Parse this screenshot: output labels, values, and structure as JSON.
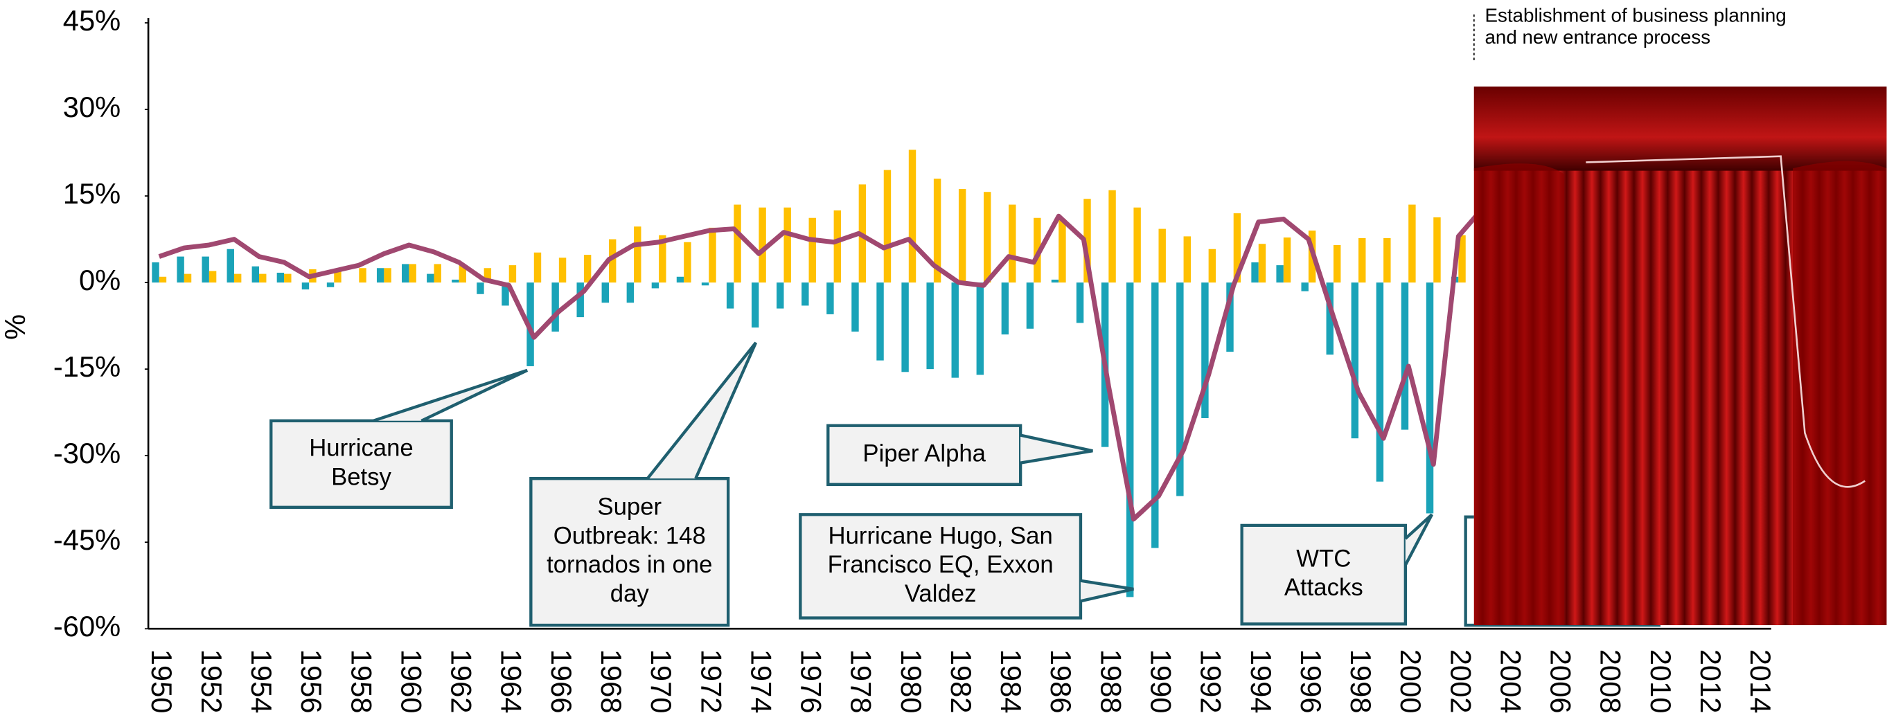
{
  "chart_data": {
    "type": "bar",
    "ylabel": "%",
    "categories": [
      "1950",
      null,
      "1952",
      null,
      "1954",
      null,
      "1956",
      null,
      "1958",
      null,
      "1960",
      null,
      "1962",
      null,
      "1964",
      null,
      "1966",
      null,
      "1968",
      null,
      "1970",
      null,
      "1972",
      null,
      "1974",
      null,
      "1976",
      null,
      "1978",
      null,
      "1980",
      null,
      "1982",
      null,
      "1984",
      null,
      "1986",
      null,
      "1988",
      null,
      "1990",
      null,
      "1992",
      null,
      "1994",
      null,
      "1996",
      null,
      "1998",
      null,
      "2000",
      null,
      "2002",
      null,
      "2004",
      null,
      "2006",
      null,
      "2008",
      null,
      "2010",
      null,
      "2012",
      null,
      "2014"
    ],
    "series": [
      {
        "color": "#1aa3b8",
        "values": [
          3.5,
          4.5,
          4.5,
          5.8,
          2.8,
          1.7,
          -1.2,
          -0.8,
          0,
          2.5,
          3.2,
          1.5,
          0.5,
          -2,
          -4,
          -14.5,
          -8.5,
          -6,
          -3.5,
          -3.5,
          -1,
          1,
          -0.5,
          -4.5,
          -7.8,
          -4.5,
          -4,
          -5.5,
          -8.5,
          -13.5,
          -15.5,
          -15,
          -16.5,
          -16,
          -9,
          -8,
          0.5,
          -7,
          -28.5,
          -54.5,
          -46,
          -37,
          -23.5,
          -12,
          3.5,
          3,
          -1.5,
          -12.5,
          -27,
          -34.5,
          -25.5,
          -40,
          1,
          null,
          null,
          null,
          null,
          null,
          null,
          null,
          null,
          null,
          null,
          null,
          null
        ]
      },
      {
        "color": "#ffc000",
        "values": [
          1,
          1.5,
          2,
          1.5,
          1.5,
          1.5,
          2.3,
          2,
          2.5,
          2.5,
          3.2,
          3.2,
          3,
          2.5,
          3,
          5.2,
          4.3,
          4.8,
          7.5,
          9.7,
          8.2,
          7,
          9.5,
          13.5,
          13,
          13,
          11.2,
          12.5,
          17,
          19.5,
          23,
          18,
          16.2,
          15.7,
          13.5,
          11.2,
          11,
          14.5,
          16,
          13,
          9.3,
          8,
          5.8,
          12,
          6.7,
          7.8,
          9,
          6.5,
          7.7,
          7.7,
          13.5,
          11.3,
          8.2,
          null,
          null,
          null,
          null,
          null,
          null,
          null,
          null,
          null,
          null,
          null,
          null
        ]
      },
      {
        "type": "line",
        "color": "#a04870",
        "values": [
          4.5,
          6,
          6.5,
          7.5,
          4.5,
          3.5,
          1,
          2,
          3,
          5,
          6.5,
          5.3,
          3.5,
          0.5,
          -0.5,
          -9.5,
          -5,
          -1.5,
          4,
          6.5,
          7,
          8,
          9,
          9.3,
          5,
          8.7,
          7.5,
          7,
          8.5,
          6,
          7.5,
          3,
          0,
          -0.5,
          4.5,
          3.5,
          11.5,
          7.5,
          -18,
          -41,
          -37,
          -29,
          -16,
          -0.5,
          10.5,
          11,
          7.5,
          -6,
          -19,
          -27,
          -14.5,
          -31.5,
          8,
          13,
          null,
          null,
          null,
          null,
          null,
          null,
          null,
          null,
          null,
          null,
          null
        ]
      }
    ],
    "ylim": [
      -60,
      45
    ],
    "yticks": [
      {
        "value": 45,
        "label": "45%"
      },
      {
        "value": 30,
        "label": "30%"
      },
      {
        "value": 15,
        "label": "15%"
      },
      {
        "value": 0,
        "label": "0%"
      },
      {
        "value": -15,
        "label": "-15%"
      },
      {
        "value": -30,
        "label": "-30%"
      },
      {
        "value": -45,
        "label": "-45%"
      },
      {
        "value": -60,
        "label": "-60%"
      }
    ],
    "annotations": [
      {
        "lines": [
          "Hurricane",
          "Betsy"
        ]
      },
      {
        "lines": [
          "Super",
          "Outbreak: 148",
          "tornados in one",
          "day"
        ]
      },
      {
        "lines": [
          "Piper Alpha"
        ]
      },
      {
        "lines": [
          "Hurricane Hugo, San",
          "Francisco EQ, Exxon",
          "Valdez"
        ]
      },
      {
        "lines": [
          "WTC",
          "Attacks"
        ]
      }
    ],
    "note": {
      "lines": [
        "Establishment of  business planning",
        "and new entrance process"
      ]
    }
  }
}
